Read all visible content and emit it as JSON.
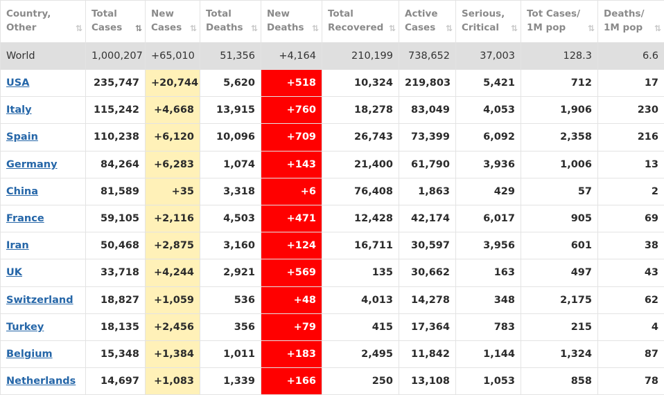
{
  "columns": [
    {
      "label": "Country,\nOther",
      "sort": "⇅"
    },
    {
      "label": "Total\nCases",
      "sort": "⇅"
    },
    {
      "label": "New\nCases",
      "sort": "⇅"
    },
    {
      "label": "Total\nDeaths",
      "sort": "⇅"
    },
    {
      "label": "New\nDeaths",
      "sort": "⇅"
    },
    {
      "label": "Total\nRecovered",
      "sort": "⇅"
    },
    {
      "label": "Active\nCases",
      "sort": "⇅"
    },
    {
      "label": "Serious,\nCritical",
      "sort": "⇅"
    },
    {
      "label": "Tot Cases/\n1M pop",
      "sort": "⇅"
    },
    {
      "label": "Deaths/\n1M pop",
      "sort": "⇅"
    }
  ],
  "world": [
    "World",
    "1,000,207",
    "+65,010",
    "51,356",
    "+4,164",
    "210,199",
    "738,652",
    "37,003",
    "128.3",
    "6.6"
  ],
  "rows": [
    [
      "USA",
      "235,747",
      "+20,744",
      "5,620",
      "+518",
      "10,324",
      "219,803",
      "5,421",
      "712",
      "17"
    ],
    [
      "Italy",
      "115,242",
      "+4,668",
      "13,915",
      "+760",
      "18,278",
      "83,049",
      "4,053",
      "1,906",
      "230"
    ],
    [
      "Spain",
      "110,238",
      "+6,120",
      "10,096",
      "+709",
      "26,743",
      "73,399",
      "6,092",
      "2,358",
      "216"
    ],
    [
      "Germany",
      "84,264",
      "+6,283",
      "1,074",
      "+143",
      "21,400",
      "61,790",
      "3,936",
      "1,006",
      "13"
    ],
    [
      "China",
      "81,589",
      "+35",
      "3,318",
      "+6",
      "76,408",
      "1,863",
      "429",
      "57",
      "2"
    ],
    [
      "France",
      "59,105",
      "+2,116",
      "4,503",
      "+471",
      "12,428",
      "42,174",
      "6,017",
      "905",
      "69"
    ],
    [
      "Iran",
      "50,468",
      "+2,875",
      "3,160",
      "+124",
      "16,711",
      "30,597",
      "3,956",
      "601",
      "38"
    ],
    [
      "UK",
      "33,718",
      "+4,244",
      "2,921",
      "+569",
      "135",
      "30,662",
      "163",
      "497",
      "43"
    ],
    [
      "Switzerland",
      "18,827",
      "+1,059",
      "536",
      "+48",
      "4,013",
      "14,278",
      "348",
      "2,175",
      "62"
    ],
    [
      "Turkey",
      "18,135",
      "+2,456",
      "356",
      "+79",
      "415",
      "17,364",
      "783",
      "215",
      "4"
    ],
    [
      "Belgium",
      "15,348",
      "+1,384",
      "1,011",
      "+183",
      "2,495",
      "11,842",
      "1,144",
      "1,324",
      "87"
    ],
    [
      "Netherlands",
      "14,697",
      "+1,083",
      "1,339",
      "+166",
      "250",
      "13,108",
      "1,053",
      "858",
      "78"
    ]
  ],
  "colors": {
    "new_cases_bg": "#fff1b8",
    "new_deaths_bg": "#ff0000",
    "link": "#2566a8",
    "world_bg": "#dfdfdf"
  }
}
